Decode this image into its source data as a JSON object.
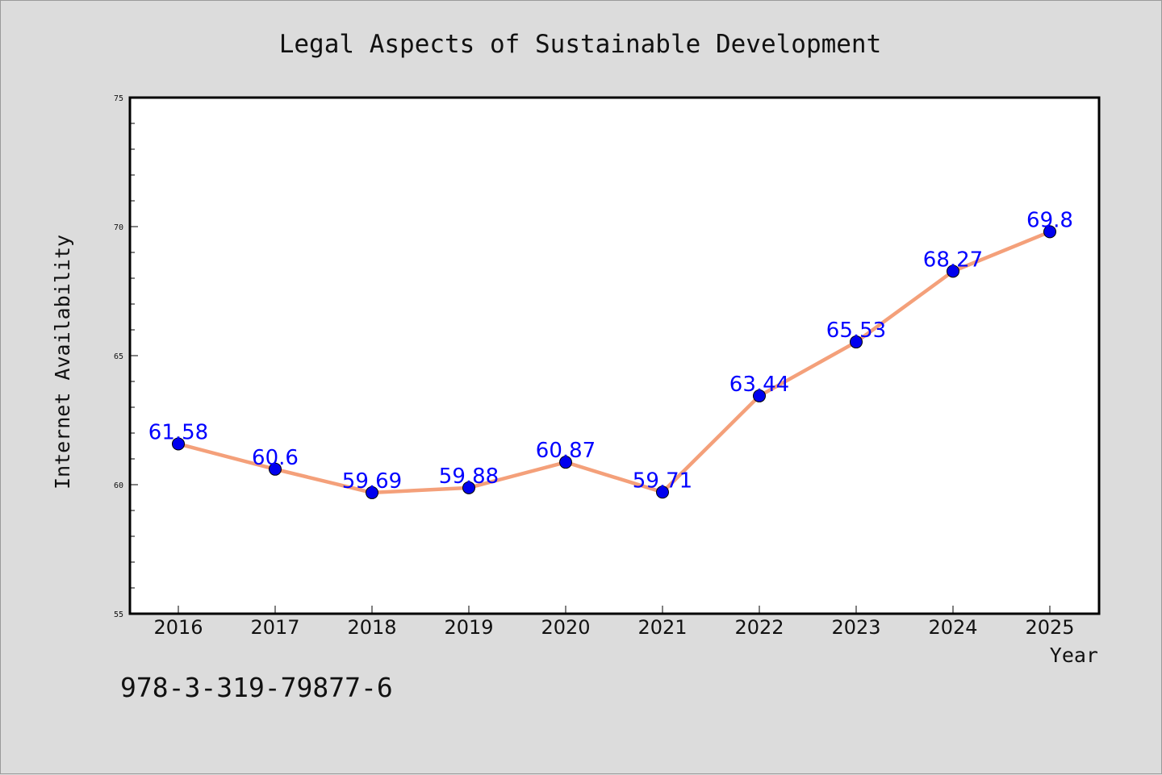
{
  "chart_data": {
    "type": "line",
    "title": "Legal Aspects of Sustainable Development",
    "xlabel": "Year",
    "ylabel": "Internet Availability",
    "categories": [
      "2016",
      "2017",
      "2018",
      "2019",
      "2020",
      "2021",
      "2022",
      "2023",
      "2024",
      "2025"
    ],
    "series": [
      {
        "values": [
          61.58,
          60.6,
          59.69,
          59.88,
          60.87,
          59.71,
          63.44,
          65.53,
          68.27,
          69.8
        ],
        "labels": [
          "61.58",
          "60.6",
          "59.69",
          "59.88",
          "60.87",
          "59.71",
          "63.44",
          "65.53",
          "68.27",
          "69.8"
        ]
      }
    ],
    "ylim": [
      55,
      75
    ],
    "yticks": [
      "55",
      "60",
      "65",
      "70",
      "75"
    ],
    "grid": false,
    "legend": "none",
    "colors": {
      "line": "#f4a07a",
      "marker": "#0000ee",
      "label": "#0000ff",
      "plot_bg": "#ffffff",
      "page_bg": "#dcdcdc"
    }
  },
  "footer": {
    "isbn": "978-3-319-79877-6"
  }
}
